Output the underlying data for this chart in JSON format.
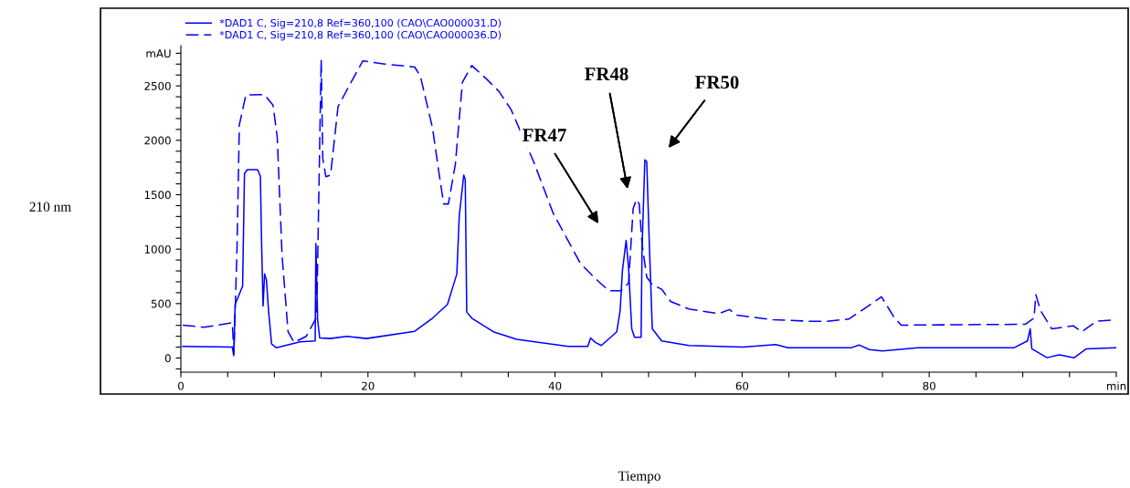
{
  "chart_data": {
    "type": "line",
    "xlim": [
      0,
      100
    ],
    "ylim": [
      -130,
      2870
    ],
    "xticks": [
      0,
      {
        "value": 5,
        "label": null
      },
      {
        "value": 10,
        "label": null
      },
      {
        "value": 15,
        "label": null
      },
      20,
      {
        "value": 25,
        "label": null
      },
      {
        "value": 30,
        "label": null
      },
      {
        "value": 35,
        "label": null
      },
      40,
      {
        "value": 45,
        "label": null
      },
      {
        "value": 50,
        "label": null
      },
      {
        "value": 55,
        "label": null
      },
      60,
      {
        "value": 65,
        "label": null
      },
      {
        "value": 70,
        "label": null
      },
      {
        "value": 75,
        "label": null
      },
      80,
      {
        "value": 85,
        "label": null
      },
      {
        "value": 90,
        "label": null
      },
      {
        "value": 95,
        "label": null
      },
      {
        "value": 100,
        "label": "min"
      }
    ],
    "yticks": [
      {
        "value": -100,
        "label": null
      },
      0,
      {
        "value": 100,
        "label": null
      },
      {
        "value": 200,
        "label": null
      },
      {
        "value": 300,
        "label": null
      },
      {
        "value": 400,
        "label": null
      },
      500,
      {
        "value": 600,
        "label": null
      },
      {
        "value": 700,
        "label": null
      },
      {
        "value": 800,
        "label": null
      },
      {
        "value": 900,
        "label": null
      },
      1000,
      {
        "value": 1100,
        "label": null
      },
      {
        "value": 1200,
        "label": null
      },
      {
        "value": 1300,
        "label": null
      },
      {
        "value": 1400,
        "label": null
      },
      1500,
      {
        "value": 1600,
        "label": null
      },
      {
        "value": 1700,
        "label": null
      },
      {
        "value": 1800,
        "label": null
      },
      {
        "value": 1900,
        "label": null
      },
      2000,
      {
        "value": 2100,
        "label": null
      },
      {
        "value": 2200,
        "label": null
      },
      {
        "value": 2300,
        "label": null
      },
      {
        "value": 2400,
        "label": null
      },
      2500,
      {
        "value": 2600,
        "label": null
      },
      {
        "value": 2700,
        "label": null
      },
      {
        "value": 2800,
        "label": "mAU"
      }
    ],
    "grid": false,
    "legend": "top left",
    "marker": "none",
    "series": [
      {
        "name": "*DAD1 C, Sig=210,8 Ref=360,100 (CAO\\CAO000031.D)",
        "color": "#0000ff",
        "line_style": "solid",
        "x": [
          0.2,
          5.5,
          5.65,
          5.8,
          6.6,
          6.8,
          7.1,
          8.2,
          8.5,
          8.63,
          8.79,
          8.95,
          9.15,
          9.37,
          9.7,
          10.2,
          12.75,
          14.36,
          14.43,
          14.62,
          14.84,
          15.97,
          17.75,
          19.84,
          25.0,
          26.9,
          28.5,
          29.5,
          29.76,
          30.24,
          30.4,
          30.56,
          31.1,
          33.4,
          35.9,
          41.4,
          43.5,
          43.8,
          44.3,
          44.95,
          46.6,
          46.96,
          47.2,
          47.6,
          47.86,
          48.2,
          48.5,
          49.2,
          49.3,
          49.6,
          49.8,
          50.1,
          50.4,
          51.4,
          54.3,
          60.1,
          63.6,
          64.9,
          71.7,
          72.5,
          73.6,
          75.0,
          78.8,
          89.1,
          90.5,
          90.8,
          90.97,
          92.6,
          93.9,
          95.5,
          96.8,
          100.0
        ],
        "values": [
          106,
          100,
          22,
          492,
          660,
          1695,
          1730,
          1730,
          1670,
          1051,
          478,
          772,
          716,
          436,
          129,
          95,
          148,
          157,
          1051,
          352,
          184,
          179,
          199,
          179,
          246,
          366,
          492,
          772,
          1303,
          1680,
          1640,
          422,
          366,
          241,
          171,
          106,
          106,
          184,
          143,
          115,
          241,
          436,
          800,
          1080,
          828,
          268,
          190,
          190,
          996,
          1820,
          1806,
          996,
          268,
          157,
          115,
          101,
          123,
          95,
          95,
          120,
          78,
          64,
          95,
          95,
          157,
          268,
          84,
          3,
          30,
          3,
          84,
          95
        ]
      },
      {
        "name": "*DAD1 C, Sig=210,8 Ref=360,100 (CAO\\CAO000036.D)",
        "color": "#0000ff",
        "line_style": "dashed",
        "x": [
          0.2,
          2.45,
          5.5,
          5.67,
          6.0,
          6.25,
          6.95,
          8.9,
          9.85,
          10.3,
          10.82,
          11.46,
          12.1,
          13.4,
          14.52,
          15.0,
          15.17,
          15.5,
          16.0,
          16.8,
          18.2,
          19.45,
          21.8,
          25.0,
          25.6,
          26.9,
          27.6,
          28.1,
          28.6,
          29.34,
          30.1,
          31.1,
          32.7,
          34.0,
          35.3,
          37.7,
          39.8,
          42.7,
          44.3,
          45.75,
          47.05,
          47.86,
          48.35,
          48.7,
          49.0,
          49.3,
          49.8,
          50.4,
          51.4,
          52.35,
          54.3,
          57.5,
          58.65,
          59.45,
          63.3,
          67.2,
          69.1,
          71.4,
          73.0,
          74.9,
          76.2,
          77.0,
          90.3,
          91.2,
          91.4,
          91.9,
          93.1,
          95.4,
          96.3,
          97.9,
          100.0
        ],
        "values": [
          302,
          282,
          324,
          39,
          996,
          2142,
          2416,
          2421,
          2324,
          2030,
          940,
          241,
          143,
          199,
          375,
          2743,
          1834,
          1666,
          1680,
          2310,
          2534,
          2729,
          2701,
          2673,
          2590,
          2114,
          1695,
          1415,
          1415,
          1778,
          2534,
          2687,
          2561,
          2450,
          2282,
          1806,
          1331,
          870,
          731,
          618,
          618,
          688,
          1373,
          1457,
          1415,
          1051,
          744,
          674,
          632,
          520,
          450,
          408,
          445,
          394,
          352,
          338,
          338,
          358,
          450,
          562,
          380,
          302,
          310,
          366,
          582,
          436,
          268,
          296,
          240,
          338,
          352
        ]
      }
    ],
    "annotations": [
      "FR47",
      "FR48",
      "FR50",
      "210 nm",
      "Tiempo"
    ]
  }
}
